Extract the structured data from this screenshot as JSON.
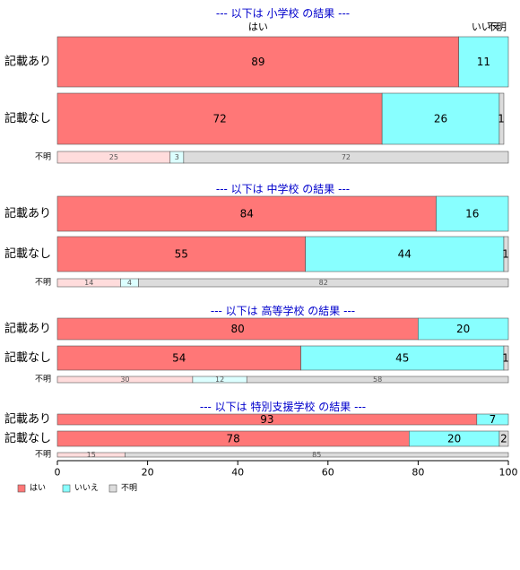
{
  "chart_data": {
    "type": "bar",
    "orientation": "horizontal",
    "stacked": true,
    "xlim": [
      0,
      100
    ],
    "x_ticks": [
      "0",
      "20",
      "40",
      "60",
      "80",
      "100"
    ],
    "grid": false,
    "colors": {
      "yes": "#ff7777",
      "no": "#88ffff",
      "unknown": "#dcdcdc",
      "yes_light": "#ffdcdc",
      "no_light": "#dcffff",
      "title": "#0000cc"
    },
    "header_labels": {
      "yes": "はい",
      "no": "いいえ",
      "unknown": "不明"
    },
    "legend": [
      {
        "key": "yes",
        "label": "はい"
      },
      {
        "key": "no",
        "label": "いいえ"
      },
      {
        "key": "unknown",
        "label": "不明"
      }
    ],
    "groups": [
      {
        "title": "--- 以下は 小学校 の結果 ---",
        "rows": [
          {
            "label": "記載あり",
            "values": [
              89,
              11,
              0
            ],
            "value_labels": [
              "89",
              "11",
              ""
            ]
          },
          {
            "label": "記載なし",
            "values": [
              72,
              26,
              1
            ],
            "value_labels": [
              "72",
              "26",
              "1"
            ]
          },
          {
            "label": "不明",
            "values": [
              25,
              3,
              72
            ],
            "value_labels": [
              "25",
              "3",
              "72"
            ]
          }
        ]
      },
      {
        "title": "--- 以下は 中学校 の結果 ---",
        "rows": [
          {
            "label": "記載あり",
            "values": [
              84,
              16,
              0
            ],
            "value_labels": [
              "84",
              "16",
              ""
            ]
          },
          {
            "label": "記載なし",
            "values": [
              55,
              44,
              1
            ],
            "value_labels": [
              "55",
              "44",
              "1"
            ]
          },
          {
            "label": "不明",
            "values": [
              14,
              4,
              82
            ],
            "value_labels": [
              "14",
              "4",
              "82"
            ]
          }
        ]
      },
      {
        "title": "--- 以下は 高等学校 の結果 ---",
        "rows": [
          {
            "label": "記載あり",
            "values": [
              80,
              20,
              0
            ],
            "value_labels": [
              "80",
              "20",
              ""
            ]
          },
          {
            "label": "記載なし",
            "values": [
              54,
              45,
              1
            ],
            "value_labels": [
              "54",
              "45",
              "1"
            ]
          },
          {
            "label": "不明",
            "values": [
              30,
              12,
              58
            ],
            "value_labels": [
              "30",
              "12",
              "58"
            ]
          }
        ]
      },
      {
        "title": "--- 以下は 特別支援学校 の結果 ---",
        "rows": [
          {
            "label": "記載あり",
            "values": [
              93,
              7,
              0
            ],
            "value_labels": [
              "93",
              "7",
              ""
            ]
          },
          {
            "label": "記載なし",
            "values": [
              78,
              20,
              2
            ],
            "value_labels": [
              "78",
              "20",
              "2"
            ]
          },
          {
            "label": "不明",
            "values": [
              15,
              0,
              85
            ],
            "value_labels": [
              "15",
              "",
              "85"
            ]
          }
        ]
      }
    ]
  }
}
